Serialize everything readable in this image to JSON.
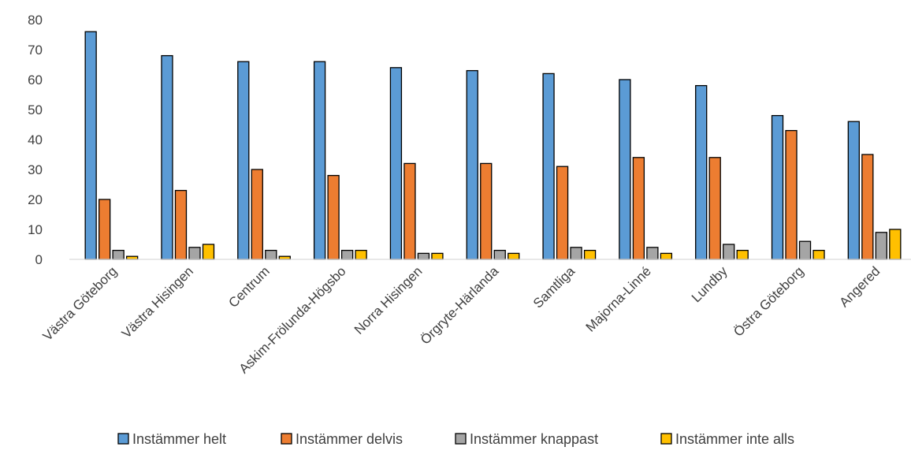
{
  "chart_data": {
    "type": "bar",
    "categories": [
      "Västra Göteborg",
      "Västra Hisingen",
      "Centrum",
      "Askim-Frölunda-Högsbo",
      "Norra Hisingen",
      "Örgryte-Härlanda",
      "Samtliga",
      "Majorna-Linné",
      "Lundby",
      "Östra Göteborg",
      "Angered"
    ],
    "series": [
      {
        "name": "Instämmer helt",
        "color": "#5b9bd5",
        "values": [
          76,
          68,
          66,
          66,
          64,
          63,
          62,
          60,
          58,
          48,
          46
        ]
      },
      {
        "name": "Instämmer delvis",
        "color": "#ed7d31",
        "values": [
          20,
          23,
          30,
          28,
          32,
          32,
          31,
          34,
          34,
          43,
          35
        ]
      },
      {
        "name": "Instämmer knappast",
        "color": "#a5a5a5",
        "values": [
          3,
          4,
          3,
          3,
          2,
          3,
          4,
          4,
          5,
          6,
          9
        ]
      },
      {
        "name": "Instämmer inte alls",
        "color": "#ffc000",
        "values": [
          1,
          5,
          1,
          3,
          2,
          2,
          3,
          2,
          3,
          3,
          10
        ]
      }
    ],
    "yticks": [
      0,
      10,
      20,
      30,
      40,
      50,
      60,
      70,
      80
    ],
    "ylim": [
      0,
      80
    ],
    "grid": false,
    "legend_position": "bottom"
  }
}
